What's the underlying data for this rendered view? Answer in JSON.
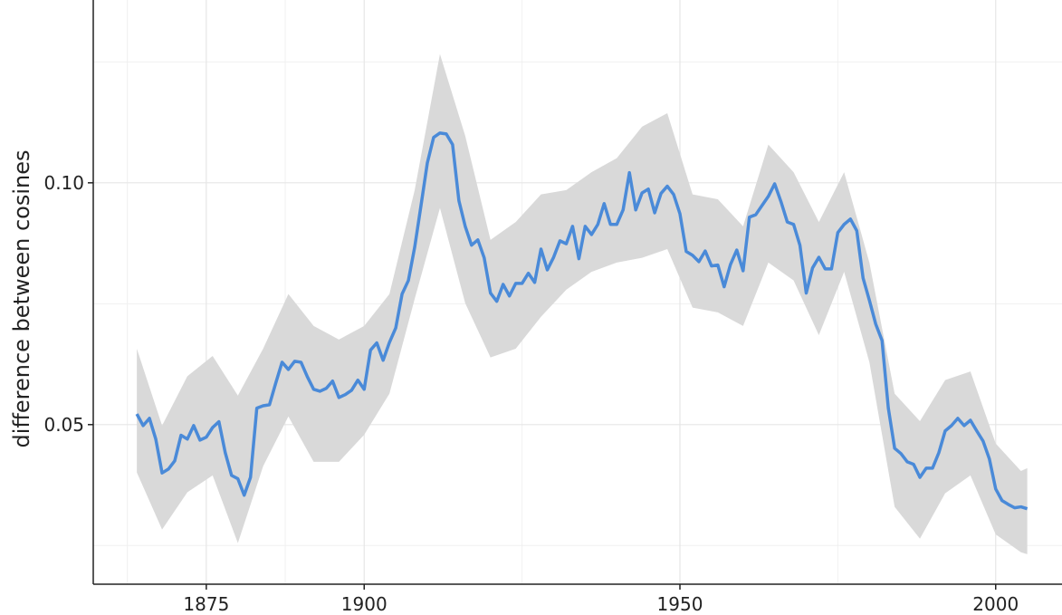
{
  "chart_data": {
    "type": "line",
    "y_label": "difference between cosines",
    "xlim": [
      1857.1,
      2010.5
    ],
    "ylim": [
      0.017,
      0.1378
    ],
    "xticks": [
      1875,
      1900,
      1950,
      2000
    ],
    "yticks": [
      0.05,
      {
        "value": 0.1,
        "label": "0.10"
      }
    ],
    "minor_xticks": [
      1862.5,
      1887.5,
      1925,
      1975
    ],
    "minor_yticks": [
      0.025,
      0.075,
      0.125
    ],
    "grid": true,
    "x": [
      1864,
      1865,
      1866,
      1867,
      1868,
      1869,
      1870,
      1871,
      1872,
      1873,
      1874,
      1875,
      1876,
      1877,
      1878,
      1879,
      1880,
      1881,
      1882,
      1883,
      1884,
      1885,
      1886,
      1887,
      1888,
      1889,
      1890,
      1891,
      1892,
      1893,
      1894,
      1895,
      1896,
      1897,
      1898,
      1899,
      1900,
      1901,
      1902,
      1903,
      1904,
      1905,
      1906,
      1907,
      1908,
      1909,
      1910,
      1911,
      1912,
      1913,
      1914,
      1915,
      1916,
      1917,
      1918,
      1919,
      1920,
      1921,
      1922,
      1923,
      1924,
      1925,
      1926,
      1927,
      1928,
      1929,
      1930,
      1931,
      1932,
      1933,
      1934,
      1935,
      1936,
      1937,
      1938,
      1939,
      1940,
      1941,
      1942,
      1943,
      1944,
      1945,
      1946,
      1947,
      1948,
      1949,
      1950,
      1951,
      1952,
      1953,
      1954,
      1955,
      1956,
      1957,
      1958,
      1959,
      1960,
      1961,
      1962,
      1963,
      1964,
      1965,
      1966,
      1967,
      1968,
      1969,
      1970,
      1971,
      1972,
      1973,
      1974,
      1975,
      1976,
      1977,
      1978,
      1979,
      1980,
      1981,
      1982,
      1983,
      1984,
      1985,
      1986,
      1987,
      1988,
      1989,
      1990,
      1991,
      1992,
      1993,
      1994,
      1995,
      1996,
      1997,
      1998,
      1999,
      2000,
      2001,
      2002,
      2003,
      2004,
      2005
    ],
    "series": [
      {
        "color": "#4a8ad8",
        "values": [
          0.0522,
          0.0498,
          0.0513,
          0.047,
          0.04,
          0.0408,
          0.0425,
          0.0478,
          0.047,
          0.0498,
          0.0468,
          0.0474,
          0.0494,
          0.0506,
          0.0442,
          0.0395,
          0.0388,
          0.0354,
          0.0391,
          0.0534,
          0.0539,
          0.0541,
          0.0586,
          0.0629,
          0.0614,
          0.0631,
          0.0629,
          0.0599,
          0.0573,
          0.0569,
          0.0575,
          0.059,
          0.0556,
          0.0562,
          0.0571,
          0.0592,
          0.0573,
          0.0654,
          0.0669,
          0.0633,
          0.067,
          0.07,
          0.077,
          0.0798,
          0.0867,
          0.0953,
          0.1041,
          0.1094,
          0.1103,
          0.1101,
          0.1079,
          0.0963,
          0.091,
          0.0871,
          0.0882,
          0.0845,
          0.0772,
          0.0755,
          0.079,
          0.0766,
          0.0792,
          0.0792,
          0.0813,
          0.0794,
          0.0863,
          0.082,
          0.0846,
          0.088,
          0.0874,
          0.091,
          0.0843,
          0.091,
          0.0893,
          0.0914,
          0.0957,
          0.0914,
          0.0914,
          0.0944,
          0.1021,
          0.0944,
          0.0979,
          0.0987,
          0.0938,
          0.0978,
          0.0993,
          0.0976,
          0.0936,
          0.0858,
          0.085,
          0.0837,
          0.0859,
          0.0828,
          0.083,
          0.0785,
          0.0831,
          0.0861,
          0.0818,
          0.0929,
          0.0934,
          0.0953,
          0.0972,
          0.0998,
          0.0961,
          0.0919,
          0.0914,
          0.0871,
          0.0772,
          0.0824,
          0.0846,
          0.0822,
          0.0822,
          0.0897,
          0.0914,
          0.0925,
          0.0901,
          0.0803,
          0.0757,
          0.0708,
          0.0674,
          0.0534,
          0.0451,
          0.044,
          0.0423,
          0.0418,
          0.0391,
          0.041,
          0.041,
          0.0442,
          0.0487,
          0.0498,
          0.0513,
          0.0498,
          0.0509,
          0.0487,
          0.0466,
          0.0429,
          0.0367,
          0.0343,
          0.0335,
          0.0328,
          0.033,
          0.0326
        ]
      }
    ],
    "band": {
      "color": "#d9d9d9",
      "x": [
        1864,
        1868,
        1872,
        1876,
        1880,
        1884,
        1888,
        1892,
        1896,
        1900,
        1904,
        1908,
        1912,
        1916,
        1920,
        1924,
        1928,
        1932,
        1936,
        1940,
        1944,
        1948,
        1952,
        1956,
        1960,
        1964,
        1968,
        1972,
        1976,
        1980,
        1984,
        1988,
        1992,
        1996,
        2000,
        2004,
        2005
      ],
      "upper": [
        0.0657,
        0.0498,
        0.06,
        0.0642,
        0.056,
        0.0657,
        0.077,
        0.0704,
        0.0676,
        0.0704,
        0.077,
        0.0985,
        0.1266,
        0.1097,
        0.0882,
        0.0919,
        0.0976,
        0.0985,
        0.1022,
        0.1051,
        0.1116,
        0.1144,
        0.0976,
        0.0966,
        0.091,
        0.1079,
        0.1022,
        0.0919,
        0.1022,
        0.0835,
        0.0564,
        0.0507,
        0.0592,
        0.061,
        0.0461,
        0.0404,
        0.041
      ],
      "lower": [
        0.0401,
        0.0283,
        0.036,
        0.0395,
        0.0255,
        0.0414,
        0.0517,
        0.0423,
        0.0423,
        0.0479,
        0.0564,
        0.076,
        0.0948,
        0.0751,
        0.0639,
        0.0657,
        0.0723,
        0.0779,
        0.0816,
        0.0835,
        0.0845,
        0.0863,
        0.0742,
        0.0732,
        0.0704,
        0.0835,
        0.0798,
        0.0685,
        0.0816,
        0.0629,
        0.033,
        0.0264,
        0.0358,
        0.0395,
        0.0273,
        0.0236,
        0.0232
      ]
    }
  }
}
